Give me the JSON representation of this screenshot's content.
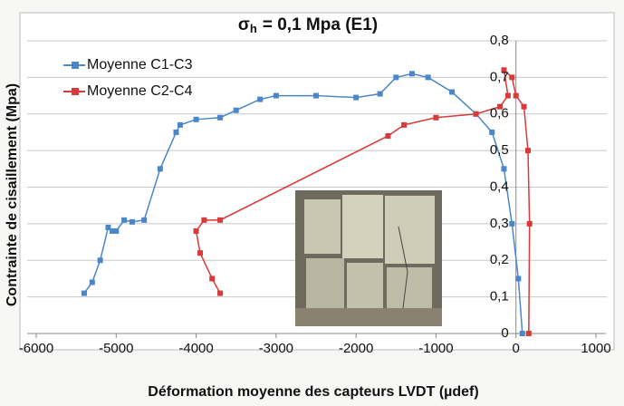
{
  "chart_data": {
    "type": "line",
    "title_parts": {
      "symbol": "σ",
      "subscript": "h",
      "text": "= 0,1 Mpa (E1)"
    },
    "x_label": "Déformation moyenne des capteurs LVDT (µdef)",
    "y_label": "Contrainte de cisaillement (Mpa)",
    "xlim": [
      -6000,
      1000
    ],
    "xticks": [
      -6000,
      -5000,
      -4000,
      -3000,
      -2000,
      -1000,
      0,
      1000
    ],
    "ylim": [
      0,
      0.8
    ],
    "yticks": [
      0,
      {
        "value": 0.1,
        "label": "0,1"
      },
      {
        "value": 0.2,
        "label": "0,2"
      },
      {
        "value": 0.3,
        "label": "0,3"
      },
      {
        "value": 0.4,
        "label": "0,4"
      },
      {
        "value": 0.5,
        "label": "0,5"
      },
      {
        "value": 0.6,
        "label": "0,6"
      },
      {
        "value": 0.7,
        "label": "0,7"
      },
      {
        "value": 0.8,
        "label": "0,8"
      }
    ],
    "grid": true,
    "legend": "top-left",
    "series": [
      {
        "name": "Moyenne C1-C3",
        "color": "#4a86c8",
        "x": [
          -5400,
          -5300,
          -5200,
          -5100,
          -5050,
          -5000,
          -4900,
          -4800,
          -4650,
          -4450,
          -4250,
          -4200,
          -4000,
          -3700,
          -3500,
          -3200,
          -3000,
          -2500,
          -2000,
          -1700,
          -1500,
          -1300,
          -1100,
          -800,
          -500,
          -300,
          -150,
          -50,
          30,
          80
        ],
        "values": [
          0.11,
          0.14,
          0.2,
          0.29,
          0.28,
          0.28,
          0.31,
          0.305,
          0.31,
          0.45,
          0.55,
          0.57,
          0.585,
          0.59,
          0.61,
          0.64,
          0.65,
          0.65,
          0.645,
          0.655,
          0.7,
          0.71,
          0.7,
          0.66,
          0.6,
          0.55,
          0.45,
          0.3,
          0.15,
          0
        ]
      },
      {
        "name": "Moyenne C2-C4",
        "color": "#d63a3a",
        "x": [
          -3700,
          -3800,
          -3950,
          -4000,
          -3900,
          -3700,
          -1600,
          -1400,
          -1000,
          -500,
          -200,
          -100,
          -150,
          -50,
          0,
          100,
          150,
          170,
          160
        ],
        "values": [
          0.11,
          0.15,
          0.22,
          0.28,
          0.31,
          0.31,
          0.54,
          0.57,
          0.59,
          0.6,
          0.62,
          0.65,
          0.72,
          0.7,
          0.65,
          0.62,
          0.5,
          0.3,
          0
        ]
      }
    ]
  }
}
